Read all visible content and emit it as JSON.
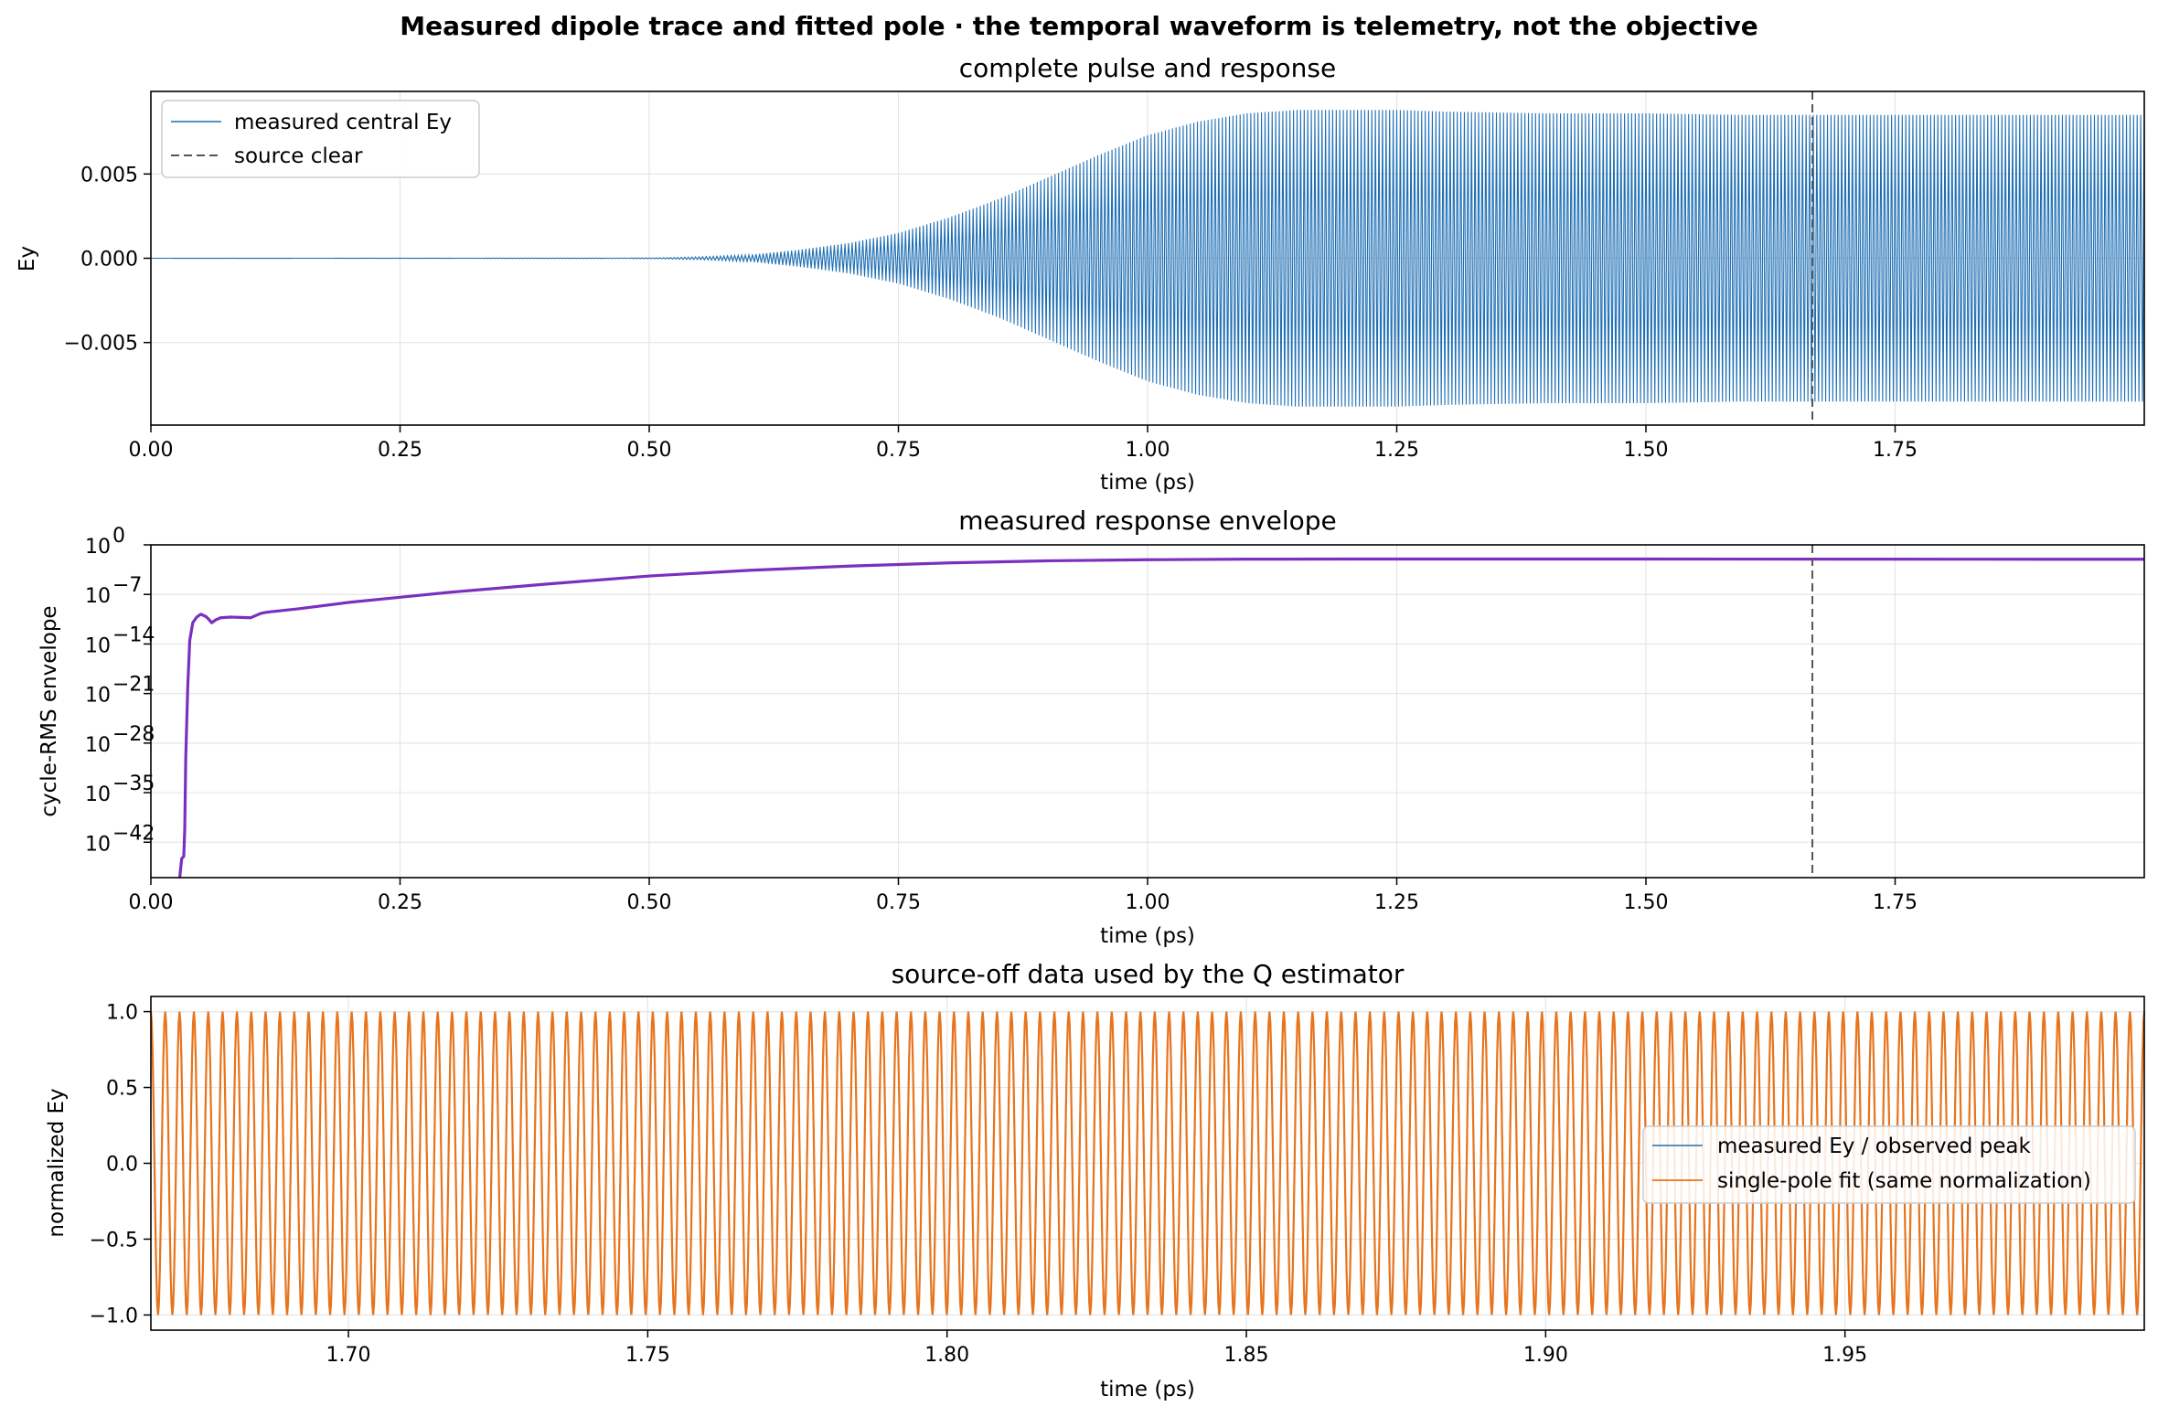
{
  "figure": {
    "suptitle": "Measured dipole trace and fitted pole · the temporal waveform is telemetry, not the objective"
  },
  "colors": {
    "measured": "#1f6fb4",
    "envelope": "#7b2fbf",
    "fit": "#e8741c",
    "source_clear": "#555555"
  },
  "chart_data": [
    {
      "type": "line",
      "title": "complete pulse and response",
      "xlabel": "time (ps)",
      "ylabel": "Ey",
      "xlim": [
        0.0,
        2.0
      ],
      "ylim": [
        -0.0099,
        0.0099
      ],
      "xticks": [
        "0.00",
        "0.25",
        "0.50",
        "0.75",
        "1.00",
        "1.25",
        "1.50",
        "1.75"
      ],
      "xtick_values": [
        0.0,
        0.25,
        0.5,
        0.75,
        1.0,
        1.25,
        1.5,
        1.75
      ],
      "yticks": [
        "0.005",
        "0.000",
        "−0.005"
      ],
      "ytick_values": [
        0.005,
        0.0,
        -0.005
      ],
      "grid": true,
      "legend_position": "upper-left",
      "series": [
        {
          "name": "measured central Ey",
          "style": "solid oscillation",
          "envelope_t": [
            0.0,
            0.5,
            0.55,
            0.6,
            0.65,
            0.7,
            0.75,
            0.8,
            0.85,
            0.9,
            0.95,
            1.0,
            1.05,
            1.1,
            1.15,
            1.2,
            1.25,
            1.3,
            1.4,
            1.5,
            1.6,
            1.7,
            1.8,
            1.9,
            2.0
          ],
          "envelope_amplitude": [
            0.0,
            2e-05,
            8e-05,
            0.0002,
            0.0005,
            0.0009,
            0.0015,
            0.0024,
            0.0035,
            0.0048,
            0.0061,
            0.0073,
            0.0081,
            0.0086,
            0.0088,
            0.0088,
            0.0088,
            0.0087,
            0.0086,
            0.0086,
            0.0085,
            0.0085,
            0.0085,
            0.0085,
            0.0085
          ]
        },
        {
          "name": "source clear",
          "style": "dashed vertical",
          "x": 1.667
        }
      ]
    },
    {
      "type": "line",
      "title": "measured response envelope",
      "xlabel": "time (ps)",
      "ylabel": "cycle-RMS envelope",
      "xlim": [
        0.0,
        2.0
      ],
      "ylim_log10": [
        -47,
        0
      ],
      "yscale": "log",
      "xticks": [
        "0.00",
        "0.25",
        "0.50",
        "0.75",
        "1.00",
        "1.25",
        "1.50",
        "1.75"
      ],
      "xtick_values": [
        0.0,
        0.25,
        0.5,
        0.75,
        1.0,
        1.25,
        1.5,
        1.75
      ],
      "ytick_exponents": [
        0,
        -7,
        -14,
        -21,
        -28,
        -35,
        -42
      ],
      "ytick_mantissa": "10",
      "grid": true,
      "series": [
        {
          "style": "solid",
          "t": [
            0.029,
            0.03,
            0.031,
            0.033,
            0.034,
            0.035,
            0.037,
            0.039,
            0.042,
            0.046,
            0.05,
            0.055,
            0.058,
            0.061,
            0.065,
            0.07,
            0.08,
            0.09,
            0.1,
            0.105,
            0.11,
            0.115,
            0.12,
            0.13,
            0.15,
            0.2,
            0.25,
            0.3,
            0.4,
            0.5,
            0.6,
            0.7,
            0.8,
            0.9,
            1.0,
            1.1,
            1.2,
            1.3,
            1.5,
            1.7,
            1.9,
            2.0
          ],
          "log10_value": [
            -47,
            -45.5,
            -44.3,
            -44.0,
            -40.0,
            -30.0,
            -20.0,
            -13.5,
            -11.0,
            -10.2,
            -9.8,
            -10.1,
            -10.5,
            -11.0,
            -10.6,
            -10.3,
            -10.2,
            -10.25,
            -10.3,
            -10.0,
            -9.7,
            -9.55,
            -9.45,
            -9.3,
            -9.0,
            -8.1,
            -7.4,
            -6.7,
            -5.5,
            -4.4,
            -3.6,
            -3.0,
            -2.55,
            -2.25,
            -2.1,
            -2.02,
            -2.0,
            -2.0,
            -2.0,
            -2.02,
            -2.03,
            -2.03
          ]
        },
        {
          "name": "source clear",
          "style": "dashed vertical",
          "x": 1.667
        }
      ]
    },
    {
      "type": "line",
      "title": "source-off data used by the Q estimator",
      "xlabel": "time (ps)",
      "ylabel": "normalized Ey",
      "xlim": [
        1.667,
        2.0
      ],
      "ylim": [
        -1.1,
        1.1
      ],
      "xticks": [
        "1.70",
        "1.75",
        "1.80",
        "1.85",
        "1.90",
        "1.95"
      ],
      "xtick_values": [
        1.7,
        1.75,
        1.8,
        1.85,
        1.9,
        1.95
      ],
      "yticks": [
        "1.0",
        "0.5",
        "0.0",
        "−0.5",
        "−1.0"
      ],
      "ytick_values": [
        1.0,
        0.5,
        0.0,
        -0.5,
        -1.0
      ],
      "grid": true,
      "legend_position": "center-right",
      "cycles_in_window": 139,
      "series": [
        {
          "name": "measured Ey / observed peak",
          "style": "solid oscillation",
          "amplitude": 1.0
        },
        {
          "name": "single-pole fit (same normalization)",
          "style": "solid oscillation",
          "amplitude": 1.0
        }
      ]
    }
  ]
}
